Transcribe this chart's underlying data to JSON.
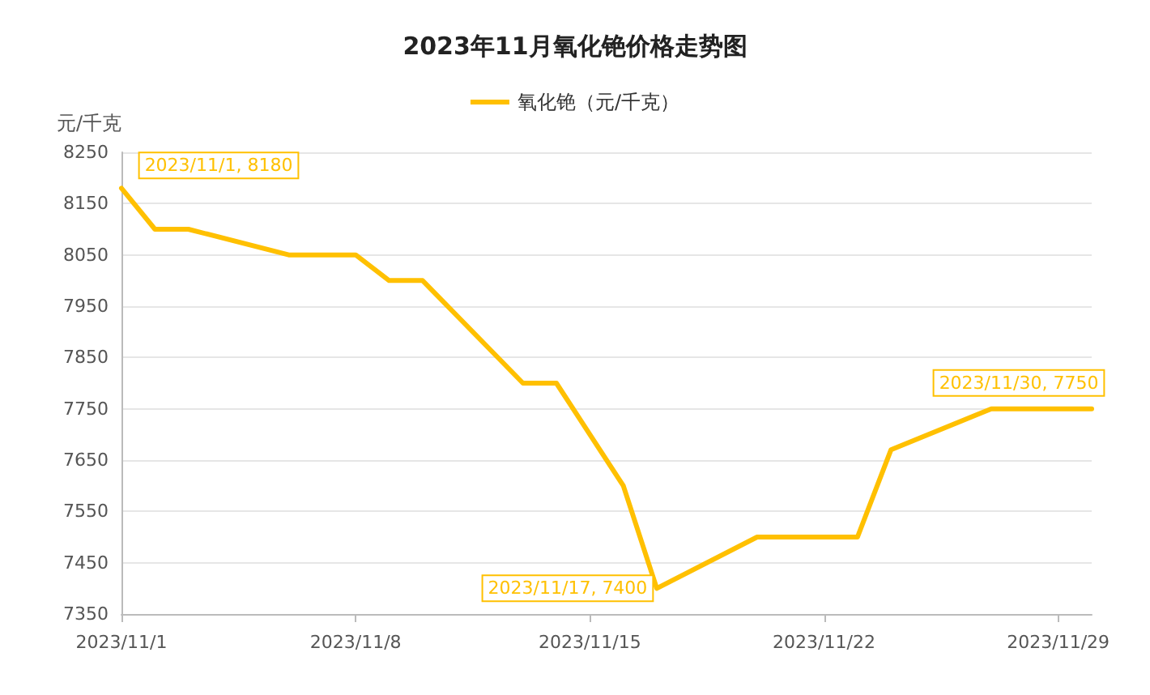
{
  "chart_data": {
    "type": "line",
    "title": "2023年11月氧化铯价格走势图",
    "ylabel": "元/千克",
    "x": [
      "2023-11-01",
      "2023-11-02",
      "2023-11-03",
      "2023-11-06",
      "2023-11-07",
      "2023-11-08",
      "2023-11-09",
      "2023-11-10",
      "2023-11-13",
      "2023-11-14",
      "2023-11-15",
      "2023-11-16",
      "2023-11-17",
      "2023-11-20",
      "2023-11-21",
      "2023-11-22",
      "2023-11-23",
      "2023-11-24",
      "2023-11-27",
      "2023-11-28",
      "2023-11-29",
      "2023-11-30"
    ],
    "series": [
      {
        "name": "氧化铯（元/千克）",
        "color": "#ffc000",
        "values": [
          8180,
          8100,
          8100,
          8050,
          8050,
          8050,
          8000,
          8000,
          7800,
          7800,
          7700,
          7600,
          7400,
          7500,
          7500,
          7500,
          7500,
          7670,
          7750,
          7750,
          7750,
          7750
        ]
      }
    ],
    "xlim": [
      "2023-11-01",
      "2023-11-30"
    ],
    "xticks": [
      {
        "value": "2023-11-01",
        "label": "2023/11/1"
      },
      {
        "value": "2023-11-08",
        "label": "2023/11/8"
      },
      {
        "value": "2023-11-15",
        "label": "2023/11/15"
      },
      {
        "value": "2023-11-22",
        "label": "2023/11/22"
      },
      {
        "value": "2023-11-29",
        "label": "2023/11/29"
      }
    ],
    "ylim": [
      7350,
      8250
    ],
    "yticks": [
      7350,
      7450,
      7550,
      7650,
      7750,
      7850,
      7950,
      8050,
      8150,
      8250
    ],
    "annotations": [
      {
        "text": "2023/11/1, 8180",
        "x": "2023-11-01",
        "y": 8180
      },
      {
        "text": "2023/11/17, 7400",
        "x": "2023-11-17",
        "y": 7400
      },
      {
        "text": "2023/11/30, 7750",
        "x": "2023-11-30",
        "y": 7750
      }
    ],
    "grid": "y",
    "legend": "top",
    "marker": "none",
    "line_style": "solid"
  }
}
